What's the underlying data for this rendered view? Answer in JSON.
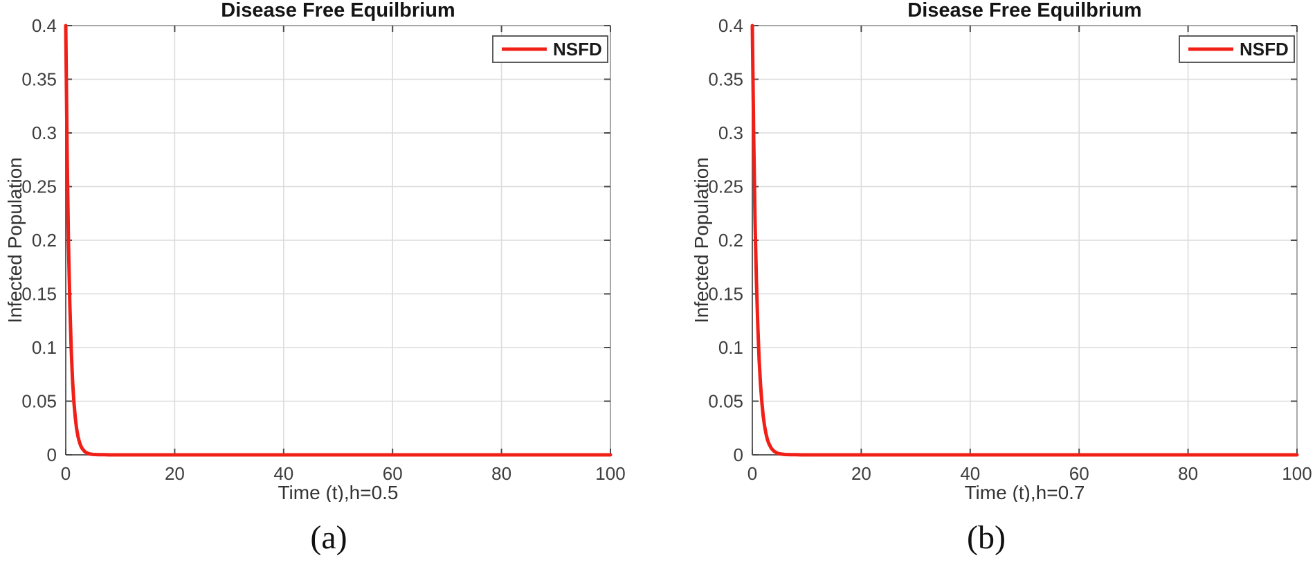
{
  "page": {
    "background": "#ffffff"
  },
  "colors": {
    "curve": "#f02018",
    "axis_box_light": "#a8a8a8",
    "axis_box_dark": "#5f5f5f",
    "tick_mark": "#4a4a4a",
    "grid": "#dcdcdc",
    "tick_label": "#3d3d3d",
    "axis_label": "#333333",
    "title": "#141414",
    "legend_border": "#5c5c5c",
    "legend_bg": "#ffffff"
  },
  "chart_data": [
    {
      "type": "line",
      "title": "Disease Free Equilbrium",
      "xlabel": "Time (t),h=0.5",
      "ylabel": "Infected Population",
      "caption": "(a)",
      "xlim": [
        0,
        100
      ],
      "ylim": [
        0,
        0.4
      ],
      "xticks": [
        0,
        20,
        40,
        60,
        80,
        100
      ],
      "yticks": [
        0,
        0.05,
        0.1,
        0.15,
        0.2,
        0.25,
        0.3,
        0.35,
        0.4
      ],
      "grid": true,
      "legend": {
        "position": "top-right",
        "entries": [
          {
            "label": "NSFD",
            "color": "#f02018"
          }
        ]
      },
      "series": [
        {
          "name": "NSFD",
          "color": "#f02018",
          "x": [
            0,
            0.25,
            0.5,
            0.75,
            1,
            1.25,
            1.5,
            1.75,
            2,
            2.25,
            2.5,
            2.75,
            3,
            3.5,
            4,
            4.5,
            5,
            6,
            7,
            8,
            9,
            10,
            12,
            15,
            20,
            30,
            40,
            50,
            60,
            70,
            80,
            90,
            100
          ],
          "y": [
            0.4,
            0.2819,
            0.1986,
            0.14,
            0.0986,
            0.0695,
            0.049,
            0.0345,
            0.0243,
            0.0171,
            0.0121,
            0.0085,
            0.006,
            0.003,
            0.0015,
            0.0007,
            0.0004,
            0.0001,
            0.0001,
            0,
            0,
            0,
            0,
            0,
            0,
            0,
            0,
            0,
            0,
            0,
            0,
            0,
            0
          ]
        }
      ]
    },
    {
      "type": "line",
      "title": "Disease Free Equilbrium",
      "xlabel": "Time (t),h=0.7",
      "ylabel": "Infected Population",
      "caption": "(b)",
      "xlim": [
        0,
        100
      ],
      "ylim": [
        0,
        0.4
      ],
      "xticks": [
        0,
        20,
        40,
        60,
        80,
        100
      ],
      "yticks": [
        0,
        0.05,
        0.1,
        0.15,
        0.2,
        0.25,
        0.3,
        0.35,
        0.4
      ],
      "grid": true,
      "legend": {
        "position": "top-right",
        "entries": [
          {
            "label": "NSFD",
            "color": "#f02018"
          }
        ]
      },
      "series": [
        {
          "name": "NSFD",
          "color": "#f02018",
          "x": [
            0,
            0.25,
            0.5,
            0.75,
            1,
            1.25,
            1.5,
            1.75,
            2,
            2.25,
            2.5,
            2.75,
            3,
            3.5,
            4,
            4.5,
            5,
            6,
            7,
            8,
            9,
            10,
            12,
            15,
            20,
            30,
            40,
            50,
            60,
            70,
            80,
            90,
            100
          ],
          "y": [
            0.4,
            0.2963,
            0.2195,
            0.1626,
            0.1205,
            0.0892,
            0.0661,
            0.049,
            0.0363,
            0.0269,
            0.0199,
            0.0148,
            0.0109,
            0.006,
            0.0033,
            0.0018,
            0.001,
            0.0003,
            0.0001,
            0.0001,
            0,
            0,
            0,
            0,
            0,
            0,
            0,
            0,
            0,
            0,
            0,
            0,
            0
          ]
        }
      ]
    }
  ]
}
